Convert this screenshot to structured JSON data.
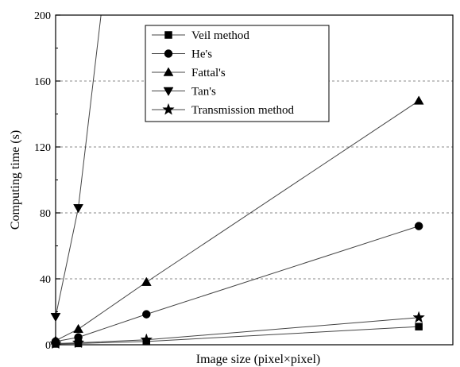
{
  "chart_data": {
    "type": "line",
    "title": "",
    "xlabel": "Image size (pixel×pixel)",
    "ylabel": "Computing  time (s)",
    "ylim": [
      0,
      200
    ],
    "xlim": [
      0,
      7000000
    ],
    "y_ticks": [
      "0",
      "40",
      "80",
      "120",
      "160",
      "200"
    ],
    "grid": "horizontal-dashed",
    "legend_placement": "top-center",
    "series": [
      {
        "name": "Veil method",
        "marker": "square",
        "x": [
          0,
          400000,
          1600000,
          6400000
        ],
        "y": [
          0.5,
          0.8,
          2,
          11
        ]
      },
      {
        "name": "He's",
        "marker": "circle",
        "x": [
          0,
          400000,
          1600000,
          6400000
        ],
        "y": [
          2,
          4.5,
          18.5,
          72
        ]
      },
      {
        "name": "Fattal's",
        "marker": "triangle-up",
        "x": [
          0,
          400000,
          1600000,
          6400000
        ],
        "y": [
          2.5,
          9.5,
          38,
          148
        ]
      },
      {
        "name": "Tan's",
        "marker": "triangle-down",
        "x": [
          0,
          400000,
          800000,
          1000000
        ],
        "y": [
          17,
          83,
          200,
          200
        ]
      },
      {
        "name": "Transmission method",
        "marker": "star",
        "x": [
          0,
          400000,
          1600000,
          6400000
        ],
        "y": [
          0.7,
          1.2,
          3,
          16.5
        ]
      }
    ]
  }
}
